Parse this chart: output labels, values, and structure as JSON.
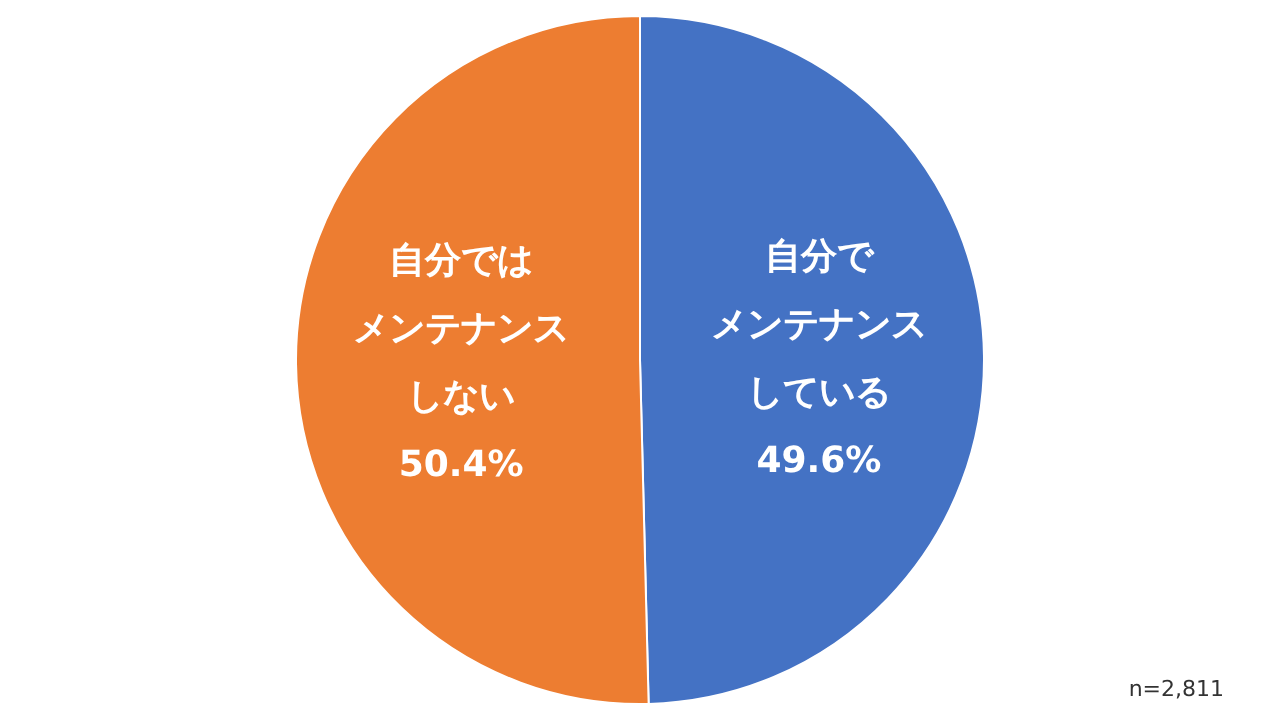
{
  "chart_data": {
    "type": "pie",
    "categories": [
      "自分でメンテナンスしている",
      "自分ではメンテナンスしない"
    ],
    "values": [
      49.6,
      50.4
    ],
    "colors": [
      "#4472c4",
      "#ed7d31"
    ],
    "value_labels": [
      "49.6%",
      "50.4%"
    ],
    "annotations": [
      "n=2,811"
    ]
  }
}
